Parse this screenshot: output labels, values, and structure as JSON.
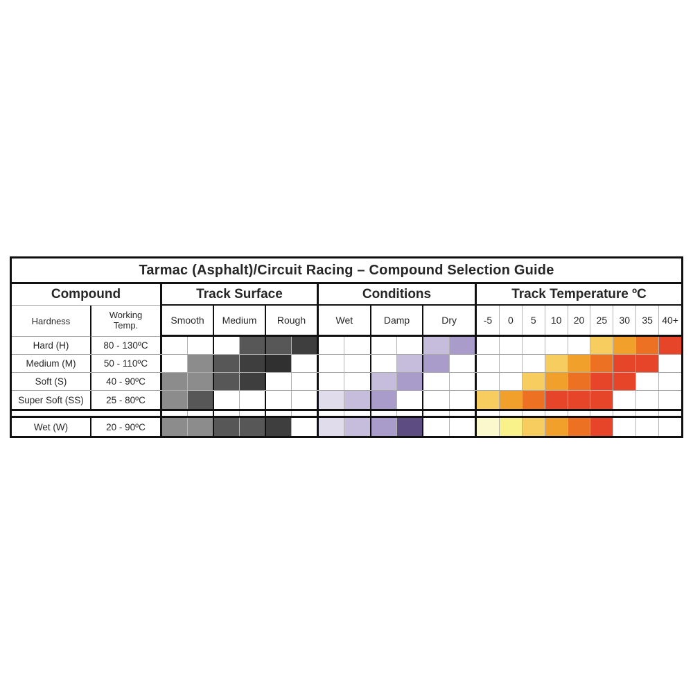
{
  "title": "Tarmac (Asphalt)/Circuit Racing – Compound Selection Guide",
  "groups": {
    "compound": "Compound",
    "surface": "Track Surface",
    "conditions": "Conditions",
    "temperature": "Track Temperature ºC"
  },
  "subheaders": {
    "hardness": "Hardness",
    "working_temp": "Working Temp.",
    "surface": [
      "Smooth",
      "Medium",
      "Rough"
    ],
    "conditions": [
      "Wet",
      "Damp",
      "Dry"
    ],
    "temps": [
      "-5",
      "0",
      "5",
      "10",
      "20",
      "25",
      "30",
      "35",
      "40+"
    ]
  },
  "palette": {
    "w": "#ffffff",
    "g1": "#8c8c8c",
    "g2": "#575757",
    "g3": "#3e3e3e",
    "g4": "#303030",
    "p1": "#e0dcec",
    "p2": "#c6bcdb",
    "p3": "#a99bca",
    "p4": "#5d4c82",
    "h1": "#fbf8cd",
    "h2": "#f9f189",
    "h3": "#f8cd5f",
    "h4": "#f1a12b",
    "h5": "#ed7123",
    "h6": "#e6452a"
  },
  "rows": [
    {
      "hardness": "Hard (H)",
      "working_temp": "80 - 130ºC",
      "surface": [
        "w",
        "w",
        "w",
        "g2",
        "g2",
        "g3"
      ],
      "conditions": [
        "w",
        "w",
        "w",
        "w",
        "p2",
        "p3"
      ],
      "temperature": [
        "w",
        "w",
        "w",
        "w",
        "w",
        "h3",
        "h4",
        "h5",
        "h6"
      ]
    },
    {
      "hardness": "Medium (M)",
      "working_temp": "50 - 110ºC",
      "surface": [
        "w",
        "g1",
        "g2",
        "g3",
        "g4",
        "w"
      ],
      "conditions": [
        "w",
        "w",
        "w",
        "p2",
        "p3",
        "w"
      ],
      "temperature": [
        "w",
        "w",
        "w",
        "h3",
        "h4",
        "h5",
        "h6",
        "h6",
        "w"
      ]
    },
    {
      "hardness": "Soft (S)",
      "working_temp": "40 - 90ºC",
      "surface": [
        "g1",
        "g1",
        "g2",
        "g3",
        "w",
        "w"
      ],
      "conditions": [
        "w",
        "w",
        "p2",
        "p3",
        "w",
        "w"
      ],
      "temperature": [
        "w",
        "w",
        "h3",
        "h4",
        "h5",
        "h6",
        "h6",
        "w",
        "w"
      ]
    },
    {
      "hardness": "Super Soft (SS)",
      "working_temp": "25 - 80ºC",
      "surface": [
        "g1",
        "g2",
        "w",
        "w",
        "w",
        "w"
      ],
      "conditions": [
        "p1",
        "p2",
        "p3",
        "w",
        "w",
        "w"
      ],
      "temperature": [
        "h3",
        "h4",
        "h5",
        "h6",
        "h6",
        "h6",
        "w",
        "w",
        "w"
      ]
    }
  ],
  "wet_row": {
    "hardness": "Wet (W)",
    "working_temp": "20 - 90ºC",
    "surface": [
      "g1",
      "g1",
      "g2",
      "g2",
      "g3",
      "w"
    ],
    "conditions": [
      "p1",
      "p2",
      "p3",
      "p4",
      "w",
      "w"
    ],
    "temperature": [
      "h1",
      "h2",
      "h3",
      "h4",
      "h5",
      "h6",
      "w",
      "w",
      "w"
    ]
  }
}
